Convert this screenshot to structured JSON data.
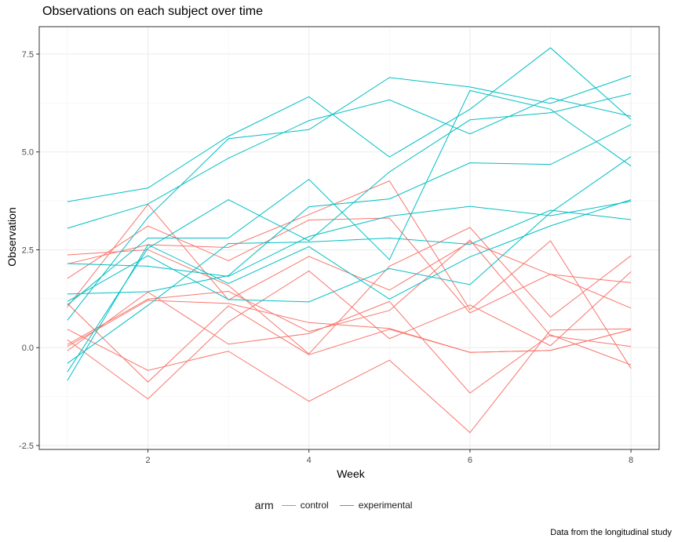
{
  "chart_data": {
    "type": "line",
    "title": "Observations on each subject over time",
    "xlabel": "Week",
    "ylabel": "Observation",
    "caption": "Data from the longitudinal study",
    "x": [
      1,
      2,
      3,
      4,
      5,
      6,
      7,
      8
    ],
    "xlim": [
      0.65,
      8.35
    ],
    "ylim": [
      -2.6,
      8.2
    ],
    "x_ticks": [
      2,
      4,
      6,
      8
    ],
    "y_ticks": [
      -2.5,
      0.0,
      2.5,
      5.0,
      7.5
    ],
    "x_tick_labels": [
      "2",
      "4",
      "6",
      "8"
    ],
    "y_tick_labels": [
      "-2.5",
      "0.0",
      "2.5",
      "5.0",
      "7.5"
    ],
    "grid": true,
    "legend_position": "bottom",
    "legend": {
      "title": "arm",
      "entries": [
        {
          "label": "control",
          "color": "#F8766D"
        },
        {
          "label": "experimental",
          "color": "#00BFC4"
        }
      ]
    },
    "series": [
      {
        "group": "control",
        "values": [
          0.2,
          -1.31,
          0.66,
          1.96,
          0.23,
          1.09,
          0.05,
          1.94
        ]
      },
      {
        "group": "control",
        "values": [
          1.13,
          -0.88,
          1.07,
          -0.18,
          0.47,
          -0.12,
          -0.07,
          0.46
        ]
      },
      {
        "group": "control",
        "values": [
          1.77,
          3.11,
          2.22,
          3.26,
          3.31,
          0.89,
          1.88,
          1.01
        ]
      },
      {
        "group": "control",
        "values": [
          1.04,
          3.66,
          1.22,
          2.33,
          1.47,
          2.7,
          1.87,
          1.66
        ]
      },
      {
        "group": "control",
        "values": [
          0.47,
          -0.58,
          -0.09,
          -1.37,
          -0.32,
          -2.17,
          0.45,
          0.48
        ]
      },
      {
        "group": "control",
        "values": [
          2.37,
          2.5,
          1.59,
          -0.16,
          2.08,
          3.07,
          0.78,
          2.35
        ]
      },
      {
        "group": "control",
        "values": [
          0.03,
          1.21,
          1.13,
          0.64,
          0.49,
          -0.12,
          -0.07,
          0.46
        ]
      },
      {
        "group": "control",
        "values": [
          -0.08,
          1.42,
          0.09,
          0.36,
          1.18,
          -1.16,
          0.33,
          -0.44
        ]
      },
      {
        "group": "control",
        "values": [
          0.08,
          1.24,
          1.44,
          0.41,
          0.95,
          2.75,
          0.3,
          0.03
        ]
      },
      {
        "group": "control",
        "values": [
          2.14,
          2.63,
          2.56,
          3.4,
          4.26,
          0.97,
          2.73,
          -0.53
        ]
      },
      {
        "group": "experimental",
        "values": [
          3.05,
          3.67,
          4.84,
          5.8,
          6.33,
          5.46,
          6.38,
          5.91
        ]
      },
      {
        "group": "experimental",
        "values": [
          -0.84,
          2.63,
          1.64,
          2.58,
          1.24,
          2.32,
          3.11,
          3.78
        ]
      },
      {
        "group": "experimental",
        "values": [
          2.15,
          2.08,
          1.82,
          2.84,
          3.36,
          3.61,
          3.37,
          3.74
        ]
      },
      {
        "group": "experimental",
        "values": [
          -0.62,
          2.54,
          3.78,
          2.73,
          4.49,
          5.82,
          6.0,
          6.49
        ]
      },
      {
        "group": "experimental",
        "values": [
          0.7,
          3.33,
          5.34,
          5.57,
          6.9,
          6.66,
          6.24,
          6.95
        ]
      },
      {
        "group": "experimental",
        "values": [
          3.73,
          4.08,
          5.4,
          6.41,
          4.87,
          6.09,
          7.66,
          5.83
        ]
      },
      {
        "group": "experimental",
        "values": [
          1.18,
          2.35,
          1.23,
          1.17,
          2.02,
          1.61,
          3.45,
          4.88
        ]
      },
      {
        "group": "experimental",
        "values": [
          1.37,
          1.43,
          1.84,
          3.6,
          3.8,
          4.72,
          4.68,
          5.7
        ]
      },
      {
        "group": "experimental",
        "values": [
          -0.4,
          1.08,
          2.66,
          2.7,
          2.8,
          2.64,
          3.51,
          3.27
        ]
      },
      {
        "group": "experimental",
        "values": [
          1.09,
          2.8,
          2.8,
          4.3,
          2.25,
          6.57,
          6.09,
          4.64
        ]
      }
    ]
  }
}
